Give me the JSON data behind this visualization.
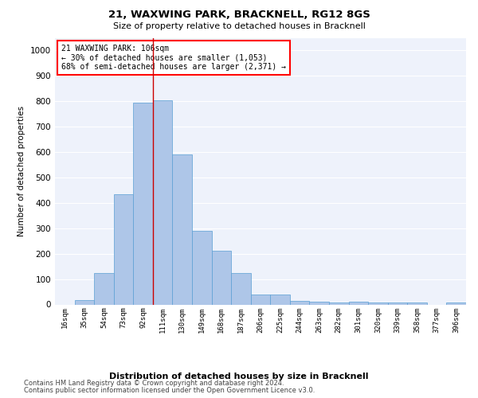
{
  "title1": "21, WAXWING PARK, BRACKNELL, RG12 8GS",
  "title2": "Size of property relative to detached houses in Bracknell",
  "xlabel": "Distribution of detached houses by size in Bracknell",
  "ylabel": "Number of detached properties",
  "categories": [
    "16sqm",
    "35sqm",
    "54sqm",
    "73sqm",
    "92sqm",
    "111sqm",
    "130sqm",
    "149sqm",
    "168sqm",
    "187sqm",
    "206sqm",
    "225sqm",
    "244sqm",
    "263sqm",
    "282sqm",
    "301sqm",
    "320sqm",
    "339sqm",
    "358sqm",
    "377sqm",
    "396sqm"
  ],
  "values": [
    0,
    18,
    123,
    435,
    793,
    805,
    590,
    290,
    211,
    125,
    40,
    40,
    13,
    10,
    8,
    10,
    7,
    7,
    7,
    0,
    8
  ],
  "bar_color": "#aec6e8",
  "bar_edge_color": "#5a9fd4",
  "bg_color": "#eef2fb",
  "grid_color": "#ffffff",
  "ylim": [
    0,
    1050
  ],
  "yticks": [
    0,
    100,
    200,
    300,
    400,
    500,
    600,
    700,
    800,
    900,
    1000
  ],
  "vline_x": 4.5,
  "vline_color": "#cc0000",
  "annotation_text": "21 WAXWING PARK: 106sqm\n← 30% of detached houses are smaller (1,053)\n68% of semi-detached houses are larger (2,371) →",
  "footer1": "Contains HM Land Registry data © Crown copyright and database right 2024.",
  "footer2": "Contains public sector information licensed under the Open Government Licence v3.0."
}
